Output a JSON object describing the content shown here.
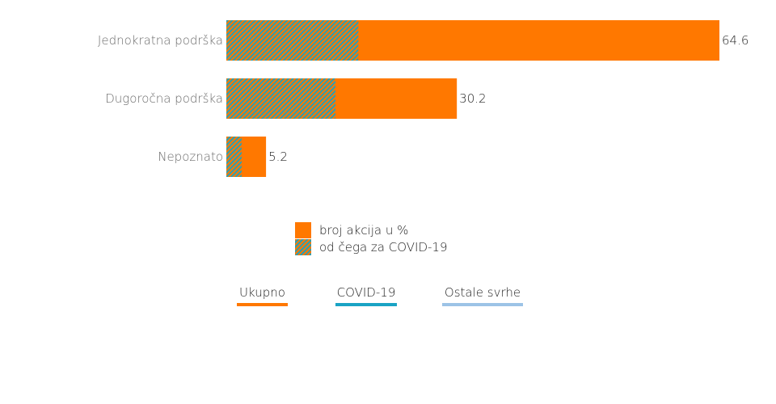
{
  "chart_data": {
    "type": "bar",
    "orientation": "horizontal",
    "categories": [
      "Jednokratna podrška",
      "Dugoročna podrška",
      "Nepoznato"
    ],
    "series": [
      {
        "name": "broj akcija u %",
        "values": [
          64.6,
          30.2,
          5.2
        ],
        "color": "#ff7800"
      },
      {
        "name": "od čega za COVID-19",
        "values": [
          17.3,
          14.3,
          2.0
        ],
        "color": "#2aa0b3",
        "pattern": "diagonal-stripes"
      }
    ],
    "data_labels": [
      "64.6",
      "30.2",
      "5.2"
    ],
    "xlim": [
      0,
      64.6
    ],
    "grid": false
  },
  "legend": {
    "total_label": "broj akcija u %",
    "covid_label": "od čega za COVID-19"
  },
  "tabs": [
    {
      "label": "Ukupno",
      "color": "#ff7800"
    },
    {
      "label": "COVID-19",
      "color": "#1aa3c4"
    },
    {
      "label": "Ostale svrhe",
      "color": "#9cc3e6"
    }
  ]
}
